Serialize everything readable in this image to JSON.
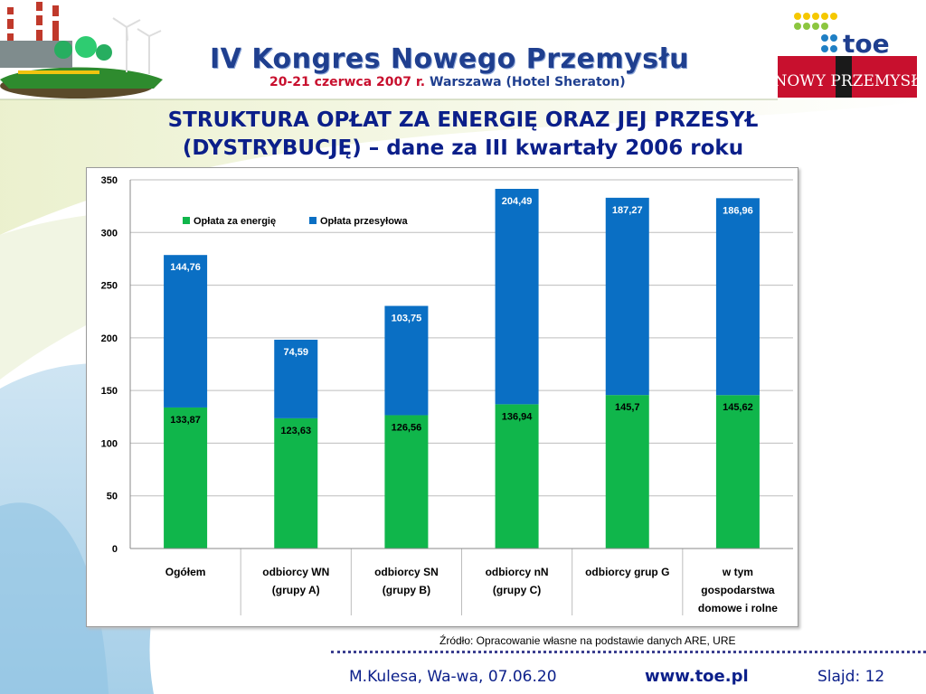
{
  "header": {
    "congress_title": "IV Kongres Nowego Przemysłu",
    "date": "20-21 czerwca 2007 r.",
    "place": "Warszawa (Hotel Sheraton)",
    "toe_logo_text": "toe",
    "np_logo_text": "NOWY PRZEMYSŁ"
  },
  "slide": {
    "title_line1": "STRUKTURA OPŁAT ZA ENERGIĘ ORAZ JEJ PRZESYŁ",
    "title_line2": "(DYSTRYBUCJĘ) – dane za III kwartały 2006 roku",
    "source": "Źródło: Opracowanie własne na podstawie danych ARE, URE"
  },
  "footer": {
    "author": "M.Kulesa, Wa-wa, 07.06.20",
    "url": "www.toe.pl",
    "slide_number": "Slajd: 12"
  },
  "colors": {
    "energy": "#10b64b",
    "transmission": "#0a6fc4",
    "title": "#0b1f8a"
  },
  "chart_data": {
    "type": "bar",
    "stacked": true,
    "categories": [
      [
        "Ogółem"
      ],
      [
        "odbiorcy WN",
        "(grupy A)"
      ],
      [
        "odbiorcy SN",
        "(grupy B)"
      ],
      [
        "odbiorcy nN",
        "(grupy C)"
      ],
      [
        "odbiorcy grup G"
      ],
      [
        "w tym",
        "gospodarstwa",
        "domowe i rolne"
      ]
    ],
    "series": [
      {
        "name": "Opłata za energię",
        "values": [
          133.87,
          123.63,
          126.56,
          136.94,
          145.7,
          145.62
        ],
        "labels": [
          "133,87",
          "123,63",
          "126,56",
          "136,94",
          "145,7",
          "145,62"
        ]
      },
      {
        "name": "Opłata przesyłowa",
        "values": [
          144.76,
          74.59,
          103.75,
          204.49,
          187.27,
          186.96
        ],
        "labels": [
          "144,76",
          "74,59",
          "103,75",
          "204,49",
          "187,27",
          "186,96"
        ]
      }
    ],
    "ylim": [
      0,
      350
    ],
    "yticks": [
      0,
      50,
      100,
      150,
      200,
      250,
      300,
      350
    ],
    "grid": true,
    "legend_position": "top-left inside"
  }
}
